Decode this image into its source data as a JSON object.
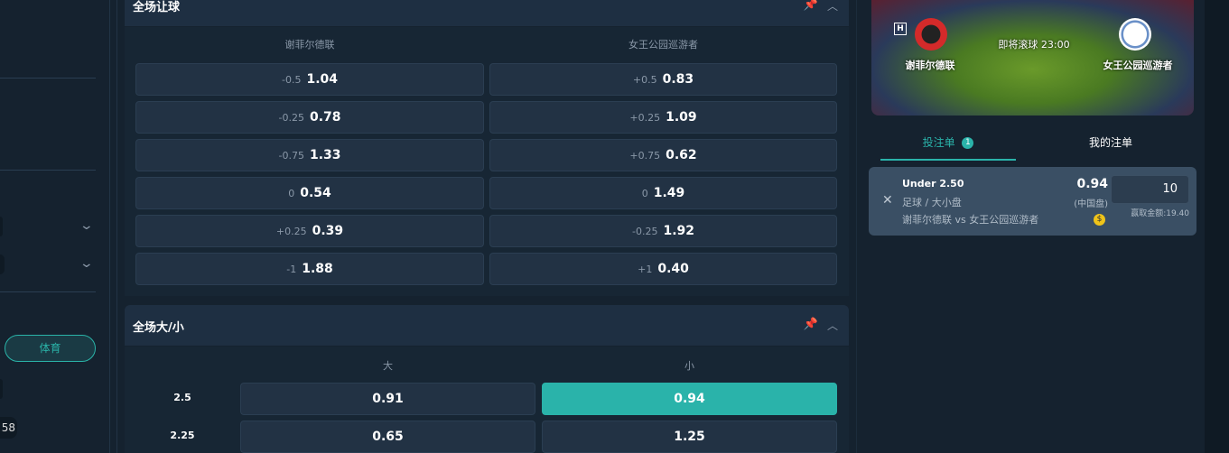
{
  "sidebar": {
    "sport_button": "体育",
    "partial_count": "58"
  },
  "handicap": {
    "title": "全场让球",
    "home": "谢菲尔德联",
    "away": "女王公园巡游者",
    "rows": [
      {
        "home_hcp": "-0.5",
        "home_odds": "1.04",
        "away_hcp": "+0.5",
        "away_odds": "0.83"
      },
      {
        "home_hcp": "-0.25",
        "home_odds": "0.78",
        "away_hcp": "+0.25",
        "away_odds": "1.09"
      },
      {
        "home_hcp": "-0.75",
        "home_odds": "1.33",
        "away_hcp": "+0.75",
        "away_odds": "0.62"
      },
      {
        "home_hcp": "0",
        "home_odds": "0.54",
        "away_hcp": "0",
        "away_odds": "1.49"
      },
      {
        "home_hcp": "+0.25",
        "home_odds": "0.39",
        "away_hcp": "-0.25",
        "away_odds": "1.92"
      },
      {
        "home_hcp": "-1",
        "home_odds": "1.88",
        "away_hcp": "+1",
        "away_odds": "0.40"
      }
    ]
  },
  "totals": {
    "title": "全场大/小",
    "over": "大",
    "under": "小",
    "rows": [
      {
        "line": "2.5",
        "over": "0.91",
        "under": "0.94",
        "selected": "under"
      },
      {
        "line": "2.25",
        "over": "0.65",
        "under": "1.25"
      }
    ]
  },
  "match": {
    "home": "谢菲尔德联",
    "away": "女王公园巡游者",
    "status": "即将滚球 23:00",
    "home_badge": "H"
  },
  "betslip": {
    "tab_slip": "投注单",
    "slip_count": "1",
    "tab_mybets": "我的注单",
    "selection": "Under 2.50",
    "market": "足球 / 大小盘",
    "event": "谢菲尔德联 vs 女王公园巡游者",
    "odds": "0.94",
    "odds_format": "(中国盘)",
    "stake": "10",
    "payout": "赢取金额:19.40",
    "accent": "#2ab3aa"
  }
}
